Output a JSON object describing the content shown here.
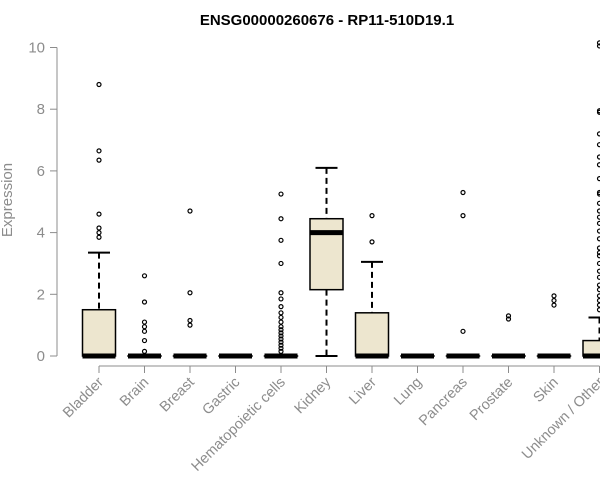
{
  "chart_data": {
    "type": "boxplot",
    "title": "ENSG00000260676 - RP11-510D19.1",
    "xlabel": "",
    "ylabel": "Expression",
    "ylim": [
      0,
      10.3
    ],
    "yticks": [
      0,
      2,
      4,
      6,
      8,
      10
    ],
    "box_fill": "#ede6cf",
    "categories": [
      "Bladder",
      "Brain",
      "Breast",
      "Gastric",
      "Hematopoietic cells",
      "Kidney",
      "Liver",
      "Lung",
      "Pancreas",
      "Prostate",
      "Skin",
      "Unknown / Other"
    ],
    "boxes": [
      {
        "name": "Bladder",
        "q1": 0,
        "median": 0,
        "q3": 1.5,
        "whisker_low": 0,
        "whisker_high": 3.35,
        "outliers": [
          8.8,
          6.65,
          6.35,
          4.6,
          4.15,
          4.0,
          3.85
        ]
      },
      {
        "name": "Brain",
        "q1": 0,
        "median": 0,
        "q3": 0,
        "whisker_low": 0,
        "whisker_high": 0,
        "outliers": [
          2.6,
          1.75,
          1.1,
          0.95,
          0.8,
          0.5,
          0.15
        ]
      },
      {
        "name": "Breast",
        "q1": 0,
        "median": 0,
        "q3": 0,
        "whisker_low": 0,
        "whisker_high": 0,
        "outliers": [
          4.7,
          2.05,
          1.15,
          1.0
        ]
      },
      {
        "name": "Gastric",
        "q1": 0,
        "median": 0,
        "q3": 0,
        "whisker_low": 0,
        "whisker_high": 0,
        "outliers": []
      },
      {
        "name": "Hematopoietic cells",
        "q1": 0,
        "median": 0,
        "q3": 0,
        "whisker_low": 0,
        "whisker_high": 0,
        "outliers": [
          5.25,
          4.45,
          3.75,
          3.0,
          2.05,
          1.85,
          1.6,
          1.4,
          1.25,
          1.1,
          0.95,
          0.85,
          0.75,
          0.65,
          0.55,
          0.45,
          0.35,
          0.25,
          0.15
        ]
      },
      {
        "name": "Kidney",
        "q1": 2.15,
        "median": 4.0,
        "q3": 4.45,
        "whisker_low": 0,
        "whisker_high": 6.1,
        "outliers": []
      },
      {
        "name": "Liver",
        "q1": 0,
        "median": 0,
        "q3": 1.4,
        "whisker_low": 0,
        "whisker_high": 3.05,
        "outliers": [
          4.55,
          3.7
        ]
      },
      {
        "name": "Lung",
        "q1": 0,
        "median": 0,
        "q3": 0,
        "whisker_low": 0,
        "whisker_high": 0,
        "outliers": []
      },
      {
        "name": "Pancreas",
        "q1": 0,
        "median": 0,
        "q3": 0,
        "whisker_low": 0,
        "whisker_high": 0,
        "outliers": [
          5.3,
          4.55,
          0.8
        ]
      },
      {
        "name": "Prostate",
        "q1": 0,
        "median": 0,
        "q3": 0,
        "whisker_low": 0,
        "whisker_high": 0,
        "outliers": [
          1.3,
          1.2
        ]
      },
      {
        "name": "Skin",
        "q1": 0,
        "median": 0,
        "q3": 0,
        "whisker_low": 0,
        "whisker_high": 0,
        "outliers": [
          1.95,
          1.8,
          1.65
        ]
      },
      {
        "name": "Unknown / Other",
        "q1": 0,
        "median": 0,
        "q3": 0.5,
        "whisker_low": 0,
        "whisker_high": 1.25,
        "outliers": [
          10.15,
          10.05,
          7.95,
          7.9,
          7.2,
          6.85,
          6.45,
          6.2,
          5.75,
          5.3,
          5.25,
          4.95,
          4.7,
          4.5,
          4.3,
          4.05,
          3.8,
          3.5,
          3.35,
          3.25,
          3.0,
          2.75,
          2.55,
          2.3,
          2.15,
          1.95,
          1.8,
          1.65,
          1.5
        ]
      }
    ]
  }
}
